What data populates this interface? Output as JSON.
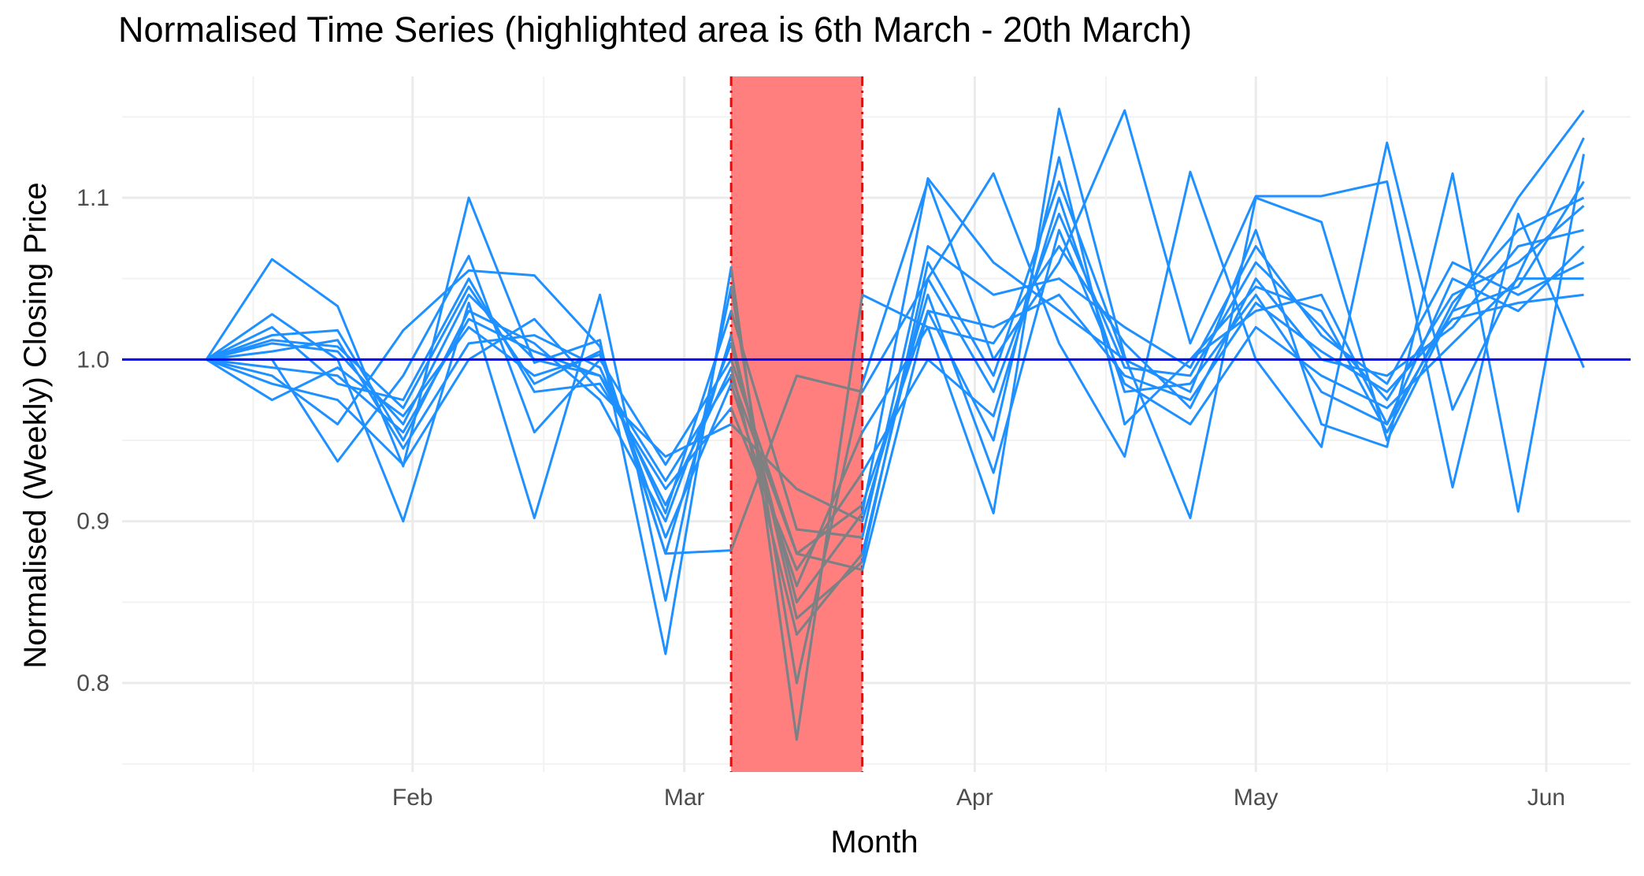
{
  "chart_data": {
    "type": "line",
    "title": "Normalised Time Series (highlighted area is 6th March - 20th March)",
    "xlabel": "Month",
    "ylabel": "Normalised (Weekly) Closing Price",
    "x_ticks": [
      "Feb",
      "Mar",
      "Apr",
      "May",
      "Jun"
    ],
    "y_ticks": [
      "0.8",
      "0.9",
      "1.0",
      "1.1"
    ],
    "ylim": [
      0.745,
      1.175
    ],
    "xlim": [
      "2020-01-01",
      "2020-06-10"
    ],
    "x": [
      "2020-01-10",
      "2020-01-17",
      "2020-01-24",
      "2020-01-31",
      "2020-02-07",
      "2020-02-14",
      "2020-02-21",
      "2020-02-28",
      "2020-03-06",
      "2020-03-13",
      "2020-03-20",
      "2020-03-27",
      "2020-04-03",
      "2020-04-10",
      "2020-04-17",
      "2020-04-24",
      "2020-05-01",
      "2020-05-08",
      "2020-05-15",
      "2020-05-22",
      "2020-05-29",
      "2020-06-05"
    ],
    "highlight": {
      "start": "2020-03-06",
      "end": "2020-03-20",
      "color": "#ff7f7f",
      "border_color": "#ff0000"
    },
    "reference_line": {
      "y": 1.0,
      "color": "#0000ff"
    },
    "series_color": "#1e90ff",
    "highlight_series_color": "#808080",
    "series": [
      {
        "values": [
          1.0,
          1.062,
          1.033,
          0.934,
          1.1,
          0.998,
          1.012,
          0.818,
          1.057,
          0.765,
          1.04,
          1.02,
          0.905,
          1.155,
          1.002,
          0.902,
          1.1,
          1.085,
          0.95,
          1.03,
          1.1,
          1.154
        ]
      },
      {
        "values": [
          1.0,
          1.028,
          1.0,
          0.9,
          1.035,
          0.902,
          1.04,
          0.851,
          1.045,
          0.8,
          0.985,
          1.11,
          1.0,
          1.06,
          1.154,
          1.01,
          1.101,
          1.101,
          1.11,
          0.921,
          1.09,
          0.995
        ]
      },
      {
        "values": [
          1.0,
          0.99,
          0.96,
          1.018,
          1.055,
          1.052,
          1.008,
          0.88,
          0.882,
          0.99,
          0.98,
          1.05,
          1.115,
          1.01,
          0.94,
          1.116,
          1.0,
          0.946,
          1.134,
          0.969,
          1.052,
          1.137
        ]
      },
      {
        "values": [
          1.0,
          1.015,
          1.018,
          0.95,
          1.03,
          1.01,
          0.975,
          0.9,
          1.01,
          0.85,
          0.905,
          1.112,
          1.06,
          1.03,
          1.0,
          0.98,
          1.08,
          0.96,
          0.946,
          1.115,
          0.906,
          1.127
        ]
      },
      {
        "values": [
          1.0,
          1.0,
          0.937,
          0.99,
          1.064,
          0.955,
          1.0,
          0.935,
          1.0,
          0.88,
          0.87,
          1.03,
          0.95,
          1.125,
          0.96,
          1.0,
          1.03,
          1.04,
          0.96,
          1.03,
          1.045,
          1.11
        ]
      },
      {
        "values": [
          1.0,
          1.01,
          1.005,
          0.96,
          1.04,
          1.0,
          0.99,
          0.91,
          0.995,
          0.83,
          0.88,
          1.05,
          0.98,
          1.09,
          0.995,
          0.99,
          1.06,
          1.02,
          0.975,
          1.04,
          1.06,
          1.095
        ]
      },
      {
        "values": [
          1.0,
          0.975,
          0.995,
          0.965,
          1.02,
          0.99,
          1.003,
          0.89,
          0.985,
          0.86,
          0.955,
          1.02,
          1.01,
          1.07,
          1.01,
          0.97,
          1.05,
          1.0,
          0.99,
          1.02,
          1.07,
          1.08
        ]
      },
      {
        "values": [
          1.0,
          1.02,
          0.985,
          0.975,
          1.05,
          0.98,
          0.985,
          0.92,
          0.97,
          0.87,
          0.93,
          1.0,
          0.965,
          1.1,
          0.98,
          0.985,
          1.04,
          0.98,
          0.96,
          1.05,
          1.03,
          1.07
        ]
      },
      {
        "values": [
          1.0,
          1.005,
          1.012,
          0.945,
          1.01,
          1.015,
          0.995,
          0.905,
          1.03,
          0.895,
          0.89,
          1.07,
          1.04,
          1.05,
          1.02,
          0.995,
          1.07,
          1.015,
          0.985,
          1.06,
          1.04,
          1.06
        ]
      },
      {
        "values": [
          1.0,
          0.985,
          0.975,
          0.935,
          1.0,
          1.025,
          0.98,
          0.94,
          0.96,
          0.92,
          0.9,
          1.04,
          0.93,
          1.08,
          0.985,
          0.96,
          1.02,
          0.99,
          0.97,
          1.01,
          1.05,
          1.05
        ]
      },
      {
        "values": [
          1.0,
          1.012,
          1.008,
          0.97,
          1.045,
          0.985,
          1.005,
          0.88,
          1.015,
          0.84,
          0.875,
          1.06,
          0.99,
          1.11,
          1.0,
          1.0,
          1.045,
          1.03,
          0.955,
          1.035,
          1.08,
          1.1
        ]
      },
      {
        "values": [
          1.0,
          0.995,
          0.99,
          0.955,
          1.025,
          1.005,
          0.99,
          0.925,
          0.99,
          0.88,
          0.91,
          1.03,
          1.02,
          1.04,
          0.99,
          0.975,
          1.035,
          1.005,
          0.98,
          1.025,
          1.035,
          1.04
        ]
      }
    ]
  }
}
